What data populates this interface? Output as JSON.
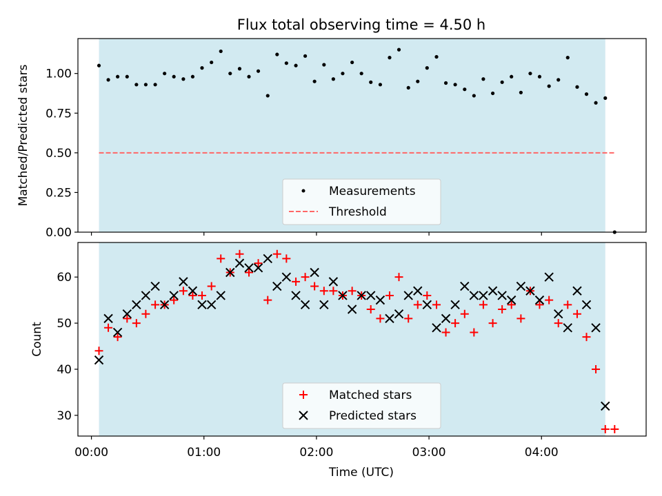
{
  "title": "Flux total observing time = 4.50 h",
  "colors": {
    "shade": "#add8e6",
    "measurement": "#000000",
    "threshold": "#ff6666",
    "matched": "#ff0000",
    "predicted": "#000000"
  },
  "chart_data": [
    {
      "type": "scatter",
      "ylabel": "Matched/Predicted stars",
      "ylim": [
        0,
        1.22
      ],
      "xlim_hours": [
        -0.12,
        4.93
      ],
      "shaded_span_hours": [
        0.067,
        4.567
      ],
      "yticks": [
        {
          "v": 0,
          "label": "0.00"
        },
        {
          "v": 0.25,
          "label": "0.25"
        },
        {
          "v": 0.5,
          "label": "0.50"
        },
        {
          "v": 0.75,
          "label": "0.75"
        },
        {
          "v": 1.0,
          "label": "1.00"
        }
      ],
      "threshold": {
        "value": 0.5,
        "x_range_hours": [
          0.067,
          4.65
        ]
      },
      "legend": {
        "position": "lower-center",
        "entries": [
          "Measurements",
          "Threshold"
        ]
      },
      "series": [
        {
          "name": "Measurements",
          "x_hours": [
            0.067,
            0.15,
            0.233,
            0.317,
            0.4,
            0.483,
            0.567,
            0.65,
            0.733,
            0.817,
            0.9,
            0.983,
            1.067,
            1.15,
            1.233,
            1.317,
            1.4,
            1.483,
            1.567,
            1.65,
            1.733,
            1.817,
            1.9,
            1.983,
            2.067,
            2.15,
            2.233,
            2.317,
            2.4,
            2.483,
            2.567,
            2.65,
            2.733,
            2.817,
            2.9,
            2.983,
            3.067,
            3.15,
            3.233,
            3.317,
            3.4,
            3.483,
            3.567,
            3.65,
            3.733,
            3.817,
            3.9,
            3.983,
            4.067,
            4.15,
            4.233,
            4.317,
            4.4,
            4.483,
            4.567,
            4.65
          ],
          "values": [
            1.05,
            0.96,
            0.98,
            0.98,
            0.93,
            0.93,
            0.93,
            1.0,
            0.98,
            0.965,
            0.98,
            1.035,
            1.07,
            1.14,
            1.0,
            1.03,
            0.98,
            1.015,
            0.86,
            1.12,
            1.065,
            1.05,
            1.11,
            0.95,
            1.055,
            0.965,
            1.0,
            1.07,
            1.0,
            0.945,
            0.93,
            1.1,
            1.15,
            0.91,
            0.95,
            1.035,
            1.105,
            0.94,
            0.93,
            0.9,
            0.86,
            0.965,
            0.875,
            0.945,
            0.98,
            0.88,
            1.0,
            0.98,
            0.92,
            0.96,
            1.1,
            0.915,
            0.87,
            0.815,
            0.845,
            0.0
          ]
        }
      ]
    },
    {
      "type": "scatter",
      "xlabel": "Time (UTC)",
      "ylabel": "Count",
      "ylim": [
        25.5,
        67.5
      ],
      "xlim_hours": [
        -0.12,
        4.93
      ],
      "yticks": [
        {
          "v": 30,
          "label": "30"
        },
        {
          "v": 40,
          "label": "40"
        },
        {
          "v": 50,
          "label": "50"
        },
        {
          "v": 60,
          "label": "60"
        }
      ],
      "xticks": [
        {
          "v": 0,
          "label": "00:00"
        },
        {
          "v": 1,
          "label": "01:00"
        },
        {
          "v": 2,
          "label": "02:00"
        },
        {
          "v": 3,
          "label": "03:00"
        },
        {
          "v": 4,
          "label": "04:00"
        }
      ],
      "legend": {
        "position": "lower-center",
        "entries": [
          "Matched stars",
          "Predicted stars"
        ]
      },
      "series": [
        {
          "name": "Matched stars",
          "marker": "+",
          "x_hours": [
            0.067,
            0.15,
            0.233,
            0.317,
            0.4,
            0.483,
            0.567,
            0.65,
            0.733,
            0.817,
            0.9,
            0.983,
            1.067,
            1.15,
            1.233,
            1.317,
            1.4,
            1.483,
            1.567,
            1.65,
            1.733,
            1.817,
            1.9,
            1.983,
            2.067,
            2.15,
            2.233,
            2.317,
            2.4,
            2.483,
            2.567,
            2.65,
            2.733,
            2.817,
            2.9,
            2.983,
            3.067,
            3.15,
            3.233,
            3.317,
            3.4,
            3.483,
            3.567,
            3.65,
            3.733,
            3.817,
            3.9,
            3.983,
            4.067,
            4.15,
            4.233,
            4.317,
            4.4,
            4.483,
            4.567,
            4.65
          ],
          "values": [
            44,
            49,
            47,
            51,
            50,
            52,
            54,
            54,
            55,
            57,
            56,
            56,
            58,
            64,
            61,
            65,
            61,
            63,
            55,
            65,
            64,
            59,
            60,
            58,
            57,
            57,
            56,
            57,
            56,
            53,
            51,
            56,
            60,
            51,
            54,
            56,
            54,
            48,
            50,
            52,
            48,
            54,
            50,
            53,
            54,
            51,
            57,
            54,
            55,
            50,
            54,
            52,
            47,
            40,
            27,
            27
          ]
        },
        {
          "name": "Predicted stars",
          "marker": "x",
          "x_hours": [
            0.067,
            0.15,
            0.233,
            0.317,
            0.4,
            0.483,
            0.567,
            0.65,
            0.733,
            0.817,
            0.9,
            0.983,
            1.067,
            1.15,
            1.233,
            1.317,
            1.4,
            1.483,
            1.567,
            1.65,
            1.733,
            1.817,
            1.9,
            1.983,
            2.067,
            2.15,
            2.233,
            2.317,
            2.4,
            2.483,
            2.567,
            2.65,
            2.733,
            2.817,
            2.9,
            2.983,
            3.067,
            3.15,
            3.233,
            3.317,
            3.4,
            3.483,
            3.567,
            3.65,
            3.733,
            3.817,
            3.9,
            3.983,
            4.067,
            4.15,
            4.233,
            4.317,
            4.4,
            4.483,
            4.567
          ],
          "values": [
            42,
            51,
            48,
            52,
            54,
            56,
            58,
            54,
            56,
            59,
            57,
            54,
            54,
            56,
            61,
            63,
            62,
            62,
            64,
            58,
            60,
            56,
            54,
            61,
            54,
            59,
            56,
            53,
            56,
            56,
            55,
            51,
            52,
            56,
            57,
            54,
            49,
            51,
            54,
            58,
            56,
            56,
            57,
            56,
            55,
            58,
            57,
            55,
            60,
            52,
            49,
            57,
            54,
            49,
            32
          ]
        }
      ]
    }
  ]
}
